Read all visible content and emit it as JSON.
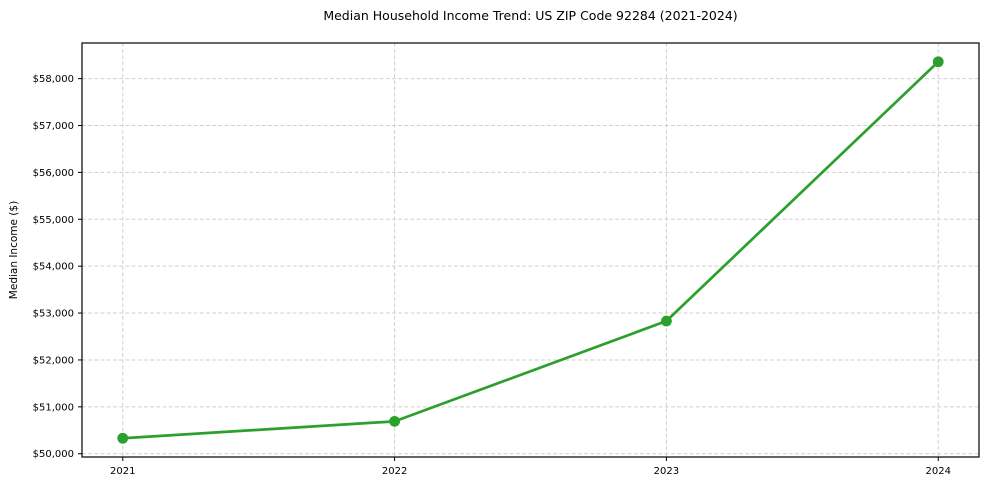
{
  "chart_data": {
    "type": "line",
    "title": "Median Household Income Trend: US ZIP Code 92284 (2021-2024)",
    "xlabel": "",
    "ylabel": "Median Income ($)",
    "x": [
      2021,
      2022,
      2023,
      2024
    ],
    "x_tick_labels": [
      "2021",
      "2022",
      "2023",
      "2024"
    ],
    "values": [
      50330,
      50690,
      52830,
      58360
    ],
    "y_ticks": [
      50000,
      51000,
      52000,
      53000,
      54000,
      55000,
      56000,
      57000,
      58000
    ],
    "y_tick_labels": [
      "$50,000",
      "$51,000",
      "$52,000",
      "$53,000",
      "$54,000",
      "$55,000",
      "$56,000",
      "$57,000",
      "$58,000"
    ],
    "xlim": [
      2020.85,
      2024.15
    ],
    "ylim": [
      49930,
      58760
    ],
    "grid": true,
    "grid_style": "dashed",
    "legend_position": "none"
  },
  "colors": {
    "line": "#2ca02c",
    "marker": "#2ca02c",
    "grid": "#cfcfcf",
    "spine": "#000000",
    "text": "#000000",
    "background": "#ffffff"
  }
}
